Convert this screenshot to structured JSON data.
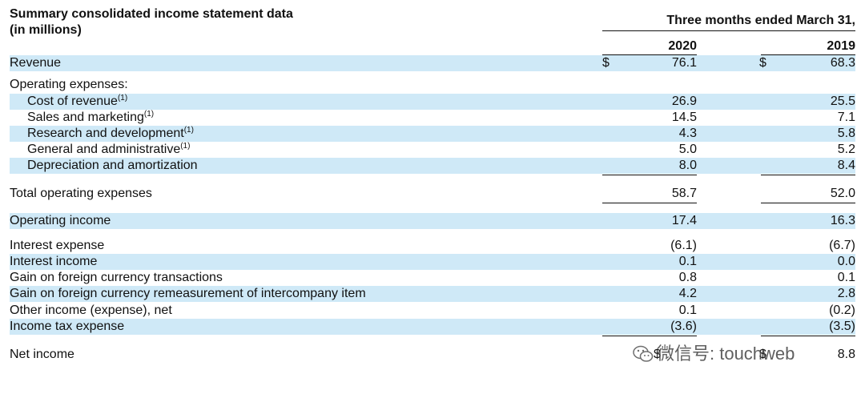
{
  "header": {
    "title_line1": "Summary consolidated income statement data",
    "title_line2": "(in millions)",
    "period": "Three months ended March 31,",
    "year1": "2020",
    "year2": "2019"
  },
  "rows": [
    {
      "label": "Revenue",
      "sup": "",
      "cur1": "$",
      "v1": "76.1",
      "cur2": "$",
      "v2": "68.3"
    },
    {
      "label": "Operating expenses:",
      "sup": "",
      "cur1": "",
      "v1": "",
      "cur2": "",
      "v2": ""
    },
    {
      "label": "Cost of revenue",
      "sup": "(1)",
      "cur1": "",
      "v1": "26.9",
      "cur2": "",
      "v2": "25.5"
    },
    {
      "label": "Sales and marketing",
      "sup": "(1)",
      "cur1": "",
      "v1": "14.5",
      "cur2": "",
      "v2": "7.1"
    },
    {
      "label": "Research and development",
      "sup": "(1)",
      "cur1": "",
      "v1": "4.3",
      "cur2": "",
      "v2": "5.8"
    },
    {
      "label": "General and administrative",
      "sup": "(1)",
      "cur1": "",
      "v1": "5.0",
      "cur2": "",
      "v2": "5.2"
    },
    {
      "label": "Depreciation and amortization",
      "sup": "",
      "cur1": "",
      "v1": "8.0",
      "cur2": "",
      "v2": "8.4"
    },
    {
      "label": "Total operating expenses",
      "sup": "",
      "cur1": "",
      "v1": "58.7",
      "cur2": "",
      "v2": "52.0"
    },
    {
      "label": "Operating income",
      "sup": "",
      "cur1": "",
      "v1": "17.4",
      "cur2": "",
      "v2": "16.3"
    },
    {
      "label": "Interest expense",
      "sup": "",
      "cur1": "",
      "v1": "(6.1)",
      "cur2": "",
      "v2": "(6.7)"
    },
    {
      "label": "Interest income",
      "sup": "",
      "cur1": "",
      "v1": "0.1",
      "cur2": "",
      "v2": "0.0"
    },
    {
      "label": "Gain on foreign currency transactions",
      "sup": "",
      "cur1": "",
      "v1": "0.8",
      "cur2": "",
      "v2": "0.1"
    },
    {
      "label": "Gain on foreign currency remeasurement of intercompany item",
      "sup": "",
      "cur1": "",
      "v1": "4.2",
      "cur2": "",
      "v2": "2.8"
    },
    {
      "label": "Other income (expense), net",
      "sup": "",
      "cur1": "",
      "v1": "0.1",
      "cur2": "",
      "v2": "(0.2)"
    },
    {
      "label": "Income tax expense",
      "sup": "",
      "cur1": "",
      "v1": "(3.6)",
      "cur2": "",
      "v2": "(3.5)"
    },
    {
      "label": "Net income",
      "sup": "",
      "cur1": "$",
      "v1": "?",
      "cur2": "$",
      "v2": "8.8"
    }
  ],
  "watermark": {
    "text": "微信号: touchweb",
    "icon": "wechat-icon"
  },
  "colors": {
    "band": "#cfe9f7",
    "text": "#111111"
  }
}
